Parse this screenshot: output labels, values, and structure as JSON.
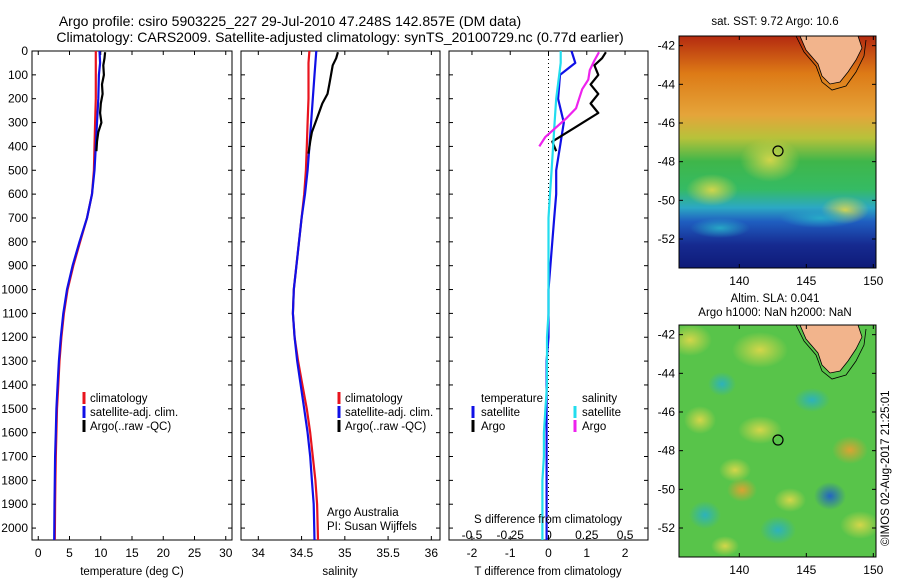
{
  "titles": {
    "line1": "Argo profile: csiro 5903225_227 29-Jul-2010 47.248S 142.857E (DM data)",
    "line2": "Climatology: CARS2009. Satellite-adjusted climatology: synTS_20100729.nc (0.77d earlier)"
  },
  "colors": {
    "climatology": "#e8141e",
    "satellite": "#1010e6",
    "argo": "#000000",
    "salinity_sat": "#22ddee",
    "salinity_argo": "#ee22ee"
  },
  "panel_temp": {
    "xlabel": "temperature (deg C)",
    "legend": [
      "climatology",
      "satellite-adj. clim.",
      "Argo(..raw -QC)"
    ]
  },
  "panel_sal": {
    "xlabel": "salinity",
    "legend": [
      "climatology",
      "satellite-adj. clim.",
      "Argo(..raw -QC)"
    ],
    "note1": "Argo Australia",
    "note2": "PI: Susan Wijffels"
  },
  "panel_diff": {
    "xlabel": "T difference from climatology",
    "top_label": "S difference from climatology",
    "legend_t_title": "temperature",
    "legend_s_title": "salinity",
    "legend_t": [
      "satellite",
      "Argo"
    ],
    "legend_s": [
      "satellite",
      "Argo"
    ]
  },
  "map_sst": {
    "title": "sat. SST: 9.72 Argo: 10.6"
  },
  "map_sla": {
    "title1": "Altim. SLA: 0.041",
    "title2": "Argo h1000: NaN h2000: NaN"
  },
  "stamp": "©IMOS 02-Aug-2017 21:25:01",
  "chart_data": [
    {
      "type": "line",
      "panel": "temperature",
      "xlabel": "temperature (deg C)",
      "ylabel": "",
      "xlim": [
        -1,
        31
      ],
      "ylim": [
        2050,
        0
      ],
      "xticks": [
        0,
        5,
        10,
        15,
        20,
        25,
        30
      ],
      "yticks": [
        0,
        100,
        200,
        300,
        400,
        500,
        600,
        700,
        800,
        900,
        1000,
        1100,
        1200,
        1300,
        1400,
        1500,
        1600,
        1700,
        1800,
        1900,
        2000
      ],
      "series": [
        {
          "name": "climatology",
          "color": "#e8141e",
          "x": [
            9.2,
            9.2,
            9.2,
            9.2,
            9.1,
            9.0,
            8.9,
            8.6,
            7.8,
            6.7,
            5.6,
            4.7,
            4.1,
            3.7,
            3.4,
            3.2,
            3.0,
            2.9,
            2.8,
            2.75,
            2.7,
            2.65
          ],
          "y": [
            0,
            50,
            100,
            200,
            300,
            400,
            500,
            600,
            700,
            800,
            900,
            1000,
            1100,
            1200,
            1300,
            1400,
            1500,
            1600,
            1700,
            1800,
            1900,
            2050
          ]
        },
        {
          "name": "satellite-adj. clim.",
          "color": "#1010e6",
          "x": [
            9.8,
            9.9,
            9.7,
            9.6,
            9.4,
            9.2,
            9.0,
            8.6,
            7.8,
            6.6,
            5.5,
            4.6,
            4.0,
            3.6,
            3.3,
            3.1,
            2.9,
            2.8,
            2.7,
            2.65,
            2.6,
            2.55
          ],
          "y": [
            0,
            50,
            100,
            200,
            300,
            400,
            500,
            600,
            700,
            800,
            900,
            1000,
            1100,
            1200,
            1300,
            1400,
            1500,
            1600,
            1700,
            1800,
            1900,
            2050
          ]
        },
        {
          "name": "Argo(..raw -QC)",
          "color": "#000000",
          "x": [
            10.7,
            10.6,
            10.4,
            10.5,
            10.2,
            10.3,
            10.0,
            9.9,
            10.1,
            9.6,
            9.4,
            9.3
          ],
          "y": [
            5,
            30,
            60,
            100,
            140,
            180,
            220,
            260,
            300,
            340,
            380,
            420
          ]
        }
      ]
    },
    {
      "type": "line",
      "panel": "salinity",
      "xlabel": "salinity",
      "ylabel": "",
      "xlim": [
        33.8,
        36.1
      ],
      "ylim": [
        2050,
        0
      ],
      "xticks": [
        34,
        34.5,
        35,
        35.5,
        36
      ],
      "series": [
        {
          "name": "climatology",
          "color": "#e8141e",
          "x": [
            34.59,
            34.58,
            34.58,
            34.58,
            34.57,
            34.56,
            34.55,
            34.53,
            34.5,
            34.47,
            34.44,
            34.41,
            34.4,
            34.42,
            34.46,
            34.51,
            34.56,
            34.6,
            34.63,
            34.66,
            34.68,
            34.69
          ],
          "y": [
            0,
            50,
            100,
            200,
            300,
            400,
            500,
            600,
            700,
            800,
            900,
            1000,
            1100,
            1200,
            1300,
            1400,
            1500,
            1600,
            1700,
            1800,
            1900,
            2050
          ]
        },
        {
          "name": "satellite-adj. clim.",
          "color": "#1010e6",
          "x": [
            34.67,
            34.66,
            34.65,
            34.63,
            34.61,
            34.59,
            34.57,
            34.54,
            34.5,
            34.47,
            34.44,
            34.41,
            34.4,
            34.42,
            34.45,
            34.49,
            34.53,
            34.57,
            34.6,
            34.62,
            34.64,
            34.65
          ],
          "y": [
            0,
            50,
            100,
            200,
            300,
            400,
            500,
            600,
            700,
            800,
            900,
            1000,
            1100,
            1200,
            1300,
            1400,
            1500,
            1600,
            1700,
            1800,
            1900,
            2050
          ]
        },
        {
          "name": "Argo(..raw -QC)",
          "color": "#000000",
          "x": [
            34.92,
            34.9,
            34.86,
            34.84,
            34.82,
            34.8,
            34.74,
            34.7,
            34.66,
            34.62,
            34.6,
            34.58
          ],
          "y": [
            5,
            30,
            60,
            100,
            140,
            180,
            220,
            260,
            300,
            340,
            380,
            430
          ]
        }
      ]
    },
    {
      "type": "line",
      "panel": "difference",
      "xlabel": "T difference from climatology",
      "ylabel": "",
      "xlim": [
        -2.6,
        2.6
      ],
      "ylim": [
        2050,
        0
      ],
      "xticks": [
        -2,
        -1,
        0,
        1,
        2
      ],
      "top_xticks": [
        -0.5,
        -0.25,
        0,
        0.25,
        0.5
      ],
      "top_xlim": [
        -0.65,
        0.65
      ],
      "series": [
        {
          "name": "temperature satellite",
          "color": "#1010e6",
          "axis": "T",
          "x": [
            0.6,
            0.7,
            0.3,
            0.25,
            0.4,
            0.3,
            0.2,
            0.2,
            0.15,
            0.1,
            0.05,
            0.0,
            0.0,
            0.0,
            -0.05,
            -0.05,
            -0.05,
            -0.05,
            -0.05,
            -0.05,
            -0.05
          ],
          "y": [
            0,
            50,
            100,
            200,
            300,
            400,
            500,
            600,
            700,
            800,
            900,
            1000,
            1100,
            1200,
            1300,
            1400,
            1500,
            1600,
            1700,
            1800,
            2050
          ]
        },
        {
          "name": "temperature Argo",
          "color": "#000000",
          "axis": "T",
          "x": [
            1.5,
            1.4,
            1.2,
            1.3,
            1.1,
            1.3,
            1.1,
            1.3,
            0.9,
            0.5,
            0.1,
            0.2
          ],
          "y": [
            5,
            30,
            60,
            100,
            140,
            180,
            220,
            260,
            300,
            340,
            380,
            420
          ]
        },
        {
          "name": "salinity satellite",
          "color": "#22ddee",
          "axis": "S",
          "x": [
            0.08,
            0.08,
            0.07,
            0.05,
            0.04,
            0.03,
            0.02,
            0.01,
            0.0,
            0.0,
            0.0,
            0.0,
            0.0,
            -0.01,
            -0.01,
            -0.01,
            -0.02,
            -0.03,
            -0.03,
            -0.04,
            -0.04
          ],
          "y": [
            0,
            50,
            100,
            200,
            300,
            400,
            500,
            600,
            700,
            800,
            900,
            1000,
            1100,
            1200,
            1300,
            1400,
            1500,
            1600,
            1700,
            1800,
            2050
          ]
        },
        {
          "name": "salinity Argo",
          "color": "#ee22ee",
          "axis": "S",
          "x": [
            0.33,
            0.3,
            0.27,
            0.26,
            0.22,
            0.2,
            0.18,
            0.12,
            0.05,
            -0.02,
            -0.06
          ],
          "y": [
            5,
            40,
            80,
            120,
            160,
            200,
            240,
            280,
            320,
            360,
            400
          ]
        }
      ]
    },
    {
      "type": "heatmap",
      "panel": "SST map",
      "title": "sat. SST: 9.72 Argo: 10.6",
      "xlim": [
        135.5,
        150.2
      ],
      "ylim": [
        -53.5,
        -41.5
      ],
      "xticks": [
        140,
        145,
        150
      ],
      "yticks": [
        -42,
        -44,
        -46,
        -48,
        -50,
        -52
      ],
      "float_position": {
        "lon": 142.857,
        "lat": -47.248
      }
    },
    {
      "type": "heatmap",
      "panel": "SLA map",
      "title": "Altim. SLA: 0.041 / Argo h1000: NaN h2000: NaN",
      "xlim": [
        135.5,
        150.2
      ],
      "ylim": [
        -53.5,
        -41.5
      ],
      "xticks": [
        140,
        145,
        150
      ],
      "yticks": [
        -42,
        -44,
        -46,
        -48,
        -50,
        -52
      ],
      "float_position": {
        "lon": 142.857,
        "lat": -47.248
      }
    }
  ]
}
